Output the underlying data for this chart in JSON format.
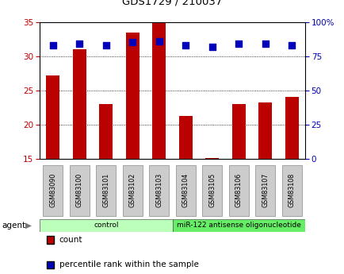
{
  "title": "GDS1729 / 210037",
  "samples": [
    "GSM83090",
    "GSM83100",
    "GSM83101",
    "GSM83102",
    "GSM83103",
    "GSM83104",
    "GSM83105",
    "GSM83106",
    "GSM83107",
    "GSM83108"
  ],
  "counts": [
    27.2,
    31.0,
    23.0,
    33.5,
    34.8,
    21.3,
    15.1,
    23.0,
    23.2,
    24.1
  ],
  "percentile_ranks": [
    83,
    84,
    83,
    85,
    86,
    83,
    82,
    84,
    84,
    83
  ],
  "groups": [
    {
      "label": "control",
      "start": 0,
      "end": 5,
      "color": "#bbffbb"
    },
    {
      "label": "miR-122 antisense oligonucleotide",
      "start": 5,
      "end": 10,
      "color": "#66ee66"
    }
  ],
  "ylim_left": [
    15,
    35
  ],
  "ylim_right": [
    0,
    100
  ],
  "yticks_left": [
    15,
    20,
    25,
    30,
    35
  ],
  "yticks_right": [
    0,
    25,
    50,
    75,
    100
  ],
  "ytick_labels_right": [
    "0",
    "25",
    "50",
    "75",
    "100%"
  ],
  "bar_color": "#bb0000",
  "dot_color": "#0000bb",
  "bar_width": 0.5,
  "dot_size": 30,
  "tick_bg_color": "#cccccc",
  "legend_count_label": "count",
  "legend_pct_label": "percentile rank within the sample",
  "agent_label": "agent"
}
